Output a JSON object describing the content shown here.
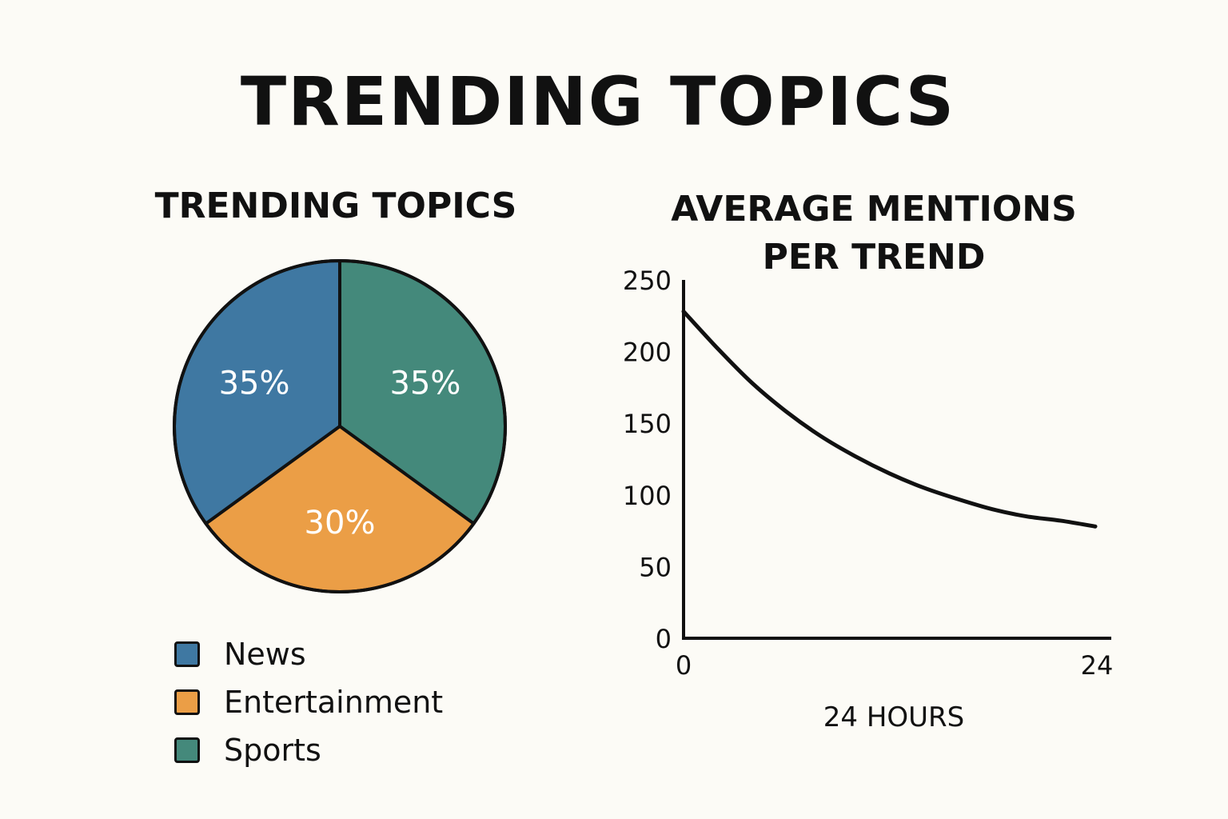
{
  "title": "TRENDING TOPICS",
  "colors": {
    "background": "#fcfbf6",
    "news": "#3f78a2",
    "entertainment": "#eb9e46",
    "sports": "#44897b",
    "line": "#111111"
  },
  "chart_data": [
    {
      "type": "pie",
      "title": "TRENDING TOPICS",
      "slices": [
        {
          "label": "News",
          "value": 35,
          "display": "35%",
          "color": "#3f78a2"
        },
        {
          "label": "Entertainment",
          "value": 30,
          "display": "30%",
          "color": "#eb9e46"
        },
        {
          "label": "Sports",
          "value": 35,
          "display": "35%",
          "color": "#44897b"
        }
      ],
      "legend_position": "bottom-left"
    },
    {
      "type": "line",
      "title_lines": [
        "AVERAGE MENTIONS",
        "PER TREND"
      ],
      "xlabel": "24 HOURS",
      "ylabel": "",
      "xlim": [
        0,
        24
      ],
      "ylim": [
        0,
        250
      ],
      "xticks": [
        "0",
        "24"
      ],
      "yticks": [
        "0",
        "50",
        "100",
        "150",
        "200",
        "250"
      ],
      "grid": false,
      "series": [
        {
          "x": [
            0,
            2,
            4,
            6,
            8,
            10,
            12,
            14,
            16,
            18,
            20,
            22,
            24
          ],
          "y": [
            228,
            202,
            178,
            158,
            141,
            127,
            115,
            105,
            97,
            90,
            85,
            82,
            78
          ]
        }
      ]
    }
  ]
}
